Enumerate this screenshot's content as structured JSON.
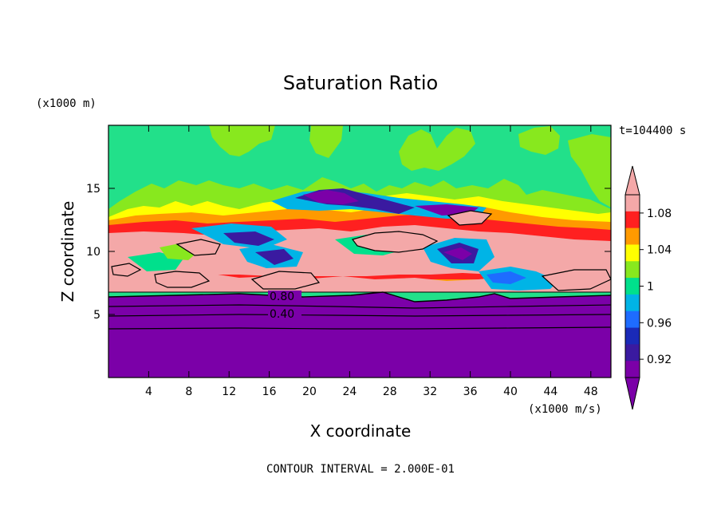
{
  "chart_data": {
    "type": "heatmap",
    "title": "Saturation Ratio",
    "xlabel": "X coordinate",
    "ylabel": "Z coordinate",
    "x_unit": "(x1000 m/s)",
    "y_unit": "(x1000 m)",
    "time_label": "t=104400 s",
    "footer": "CONTOUR INTERVAL = 2.000E-01",
    "xlim": [
      0,
      50
    ],
    "ylim": [
      0,
      20
    ],
    "x_ticks": [
      4,
      8,
      12,
      16,
      20,
      24,
      28,
      32,
      36,
      40,
      44,
      48
    ],
    "y_ticks": [
      5,
      10,
      15
    ],
    "x_tick_labels": [
      "4",
      "8",
      "12",
      "16",
      "20",
      "24",
      "28",
      "32",
      "36",
      "40",
      "44",
      "48"
    ],
    "y_tick_labels": [
      "5",
      "10",
      "15"
    ],
    "contour_labels": [
      {
        "text": "0.80",
        "x": 17.5,
        "z": 6.3
      },
      {
        "text": "0.40",
        "x": 17.5,
        "z": 5.0
      }
    ],
    "colorbar": {
      "levels": [
        0.9,
        0.92,
        0.94,
        0.96,
        0.98,
        1.0,
        1.02,
        1.04,
        1.06,
        1.08,
        1.1
      ],
      "labels": [
        "0.92",
        "0.96",
        "1",
        "1.04",
        "1.08"
      ],
      "label_values": [
        0.92,
        0.96,
        1.0,
        1.04,
        1.08
      ],
      "colors": [
        "#7b00a8",
        "#3a1aa0",
        "#1a2ab8",
        "#1e6cff",
        "#00b4e6",
        "#00e08c",
        "#88e81e",
        "#ffff00",
        "#ff9a00",
        "#ff2020",
        "#f4a8a8"
      ],
      "under_color": "#7b00a8",
      "over_color": "#f4a8a8"
    },
    "regions": {
      "upper_background": {
        "value": 1.0,
        "color": "#22e08a"
      },
      "lower_layer": {
        "z_top": 6.3,
        "value": 0.4,
        "color": "#7b00a8"
      }
    }
  }
}
